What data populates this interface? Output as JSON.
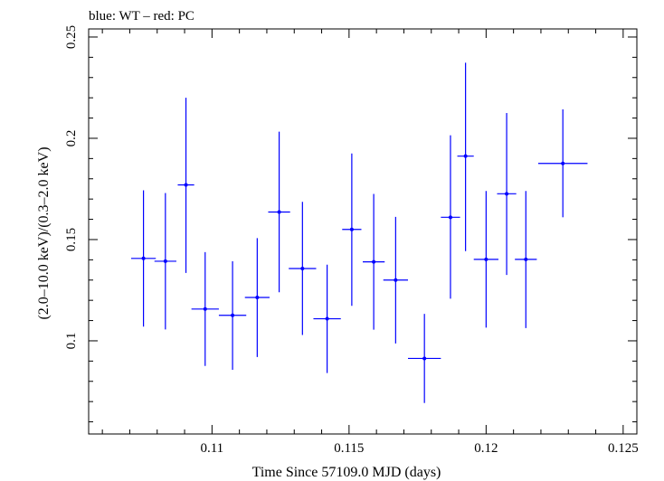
{
  "chart_data": {
    "type": "scatter",
    "title": "blue: WT – red: PC",
    "xlabel": "Time Since 57109.0 MJD (days)",
    "ylabel": "(2.0–10.0 keV)/(0.3–2.0 keV)",
    "xlim": [
      0.1055,
      0.1255
    ],
    "ylim": [
      0.054,
      0.254
    ],
    "x_ticks": [
      0.11,
      0.115,
      0.12,
      0.125
    ],
    "x_tick_labels": [
      "0.11",
      "0.115",
      "0.12",
      "0.125"
    ],
    "y_ticks": [
      0.1,
      0.15,
      0.2,
      0.25
    ],
    "y_tick_labels": [
      "0.1",
      "0.15",
      "0.2",
      "0.25"
    ],
    "grid": false,
    "series": [
      {
        "color": "#0000ff",
        "points": [
          {
            "x": 0.1075,
            "y": 0.1407,
            "xerr_lo": 0.00045,
            "xerr_hi": 0.00045,
            "y_lo": 0.107,
            "y_hi": 0.1743
          },
          {
            "x": 0.1083,
            "y": 0.1393,
            "xerr_lo": 0.0004,
            "xerr_hi": 0.0004,
            "y_lo": 0.1056,
            "y_hi": 0.173
          },
          {
            "x": 0.10905,
            "y": 0.177,
            "xerr_lo": 0.0003,
            "xerr_hi": 0.0003,
            "y_lo": 0.1335,
            "y_hi": 0.22
          },
          {
            "x": 0.10975,
            "y": 0.1157,
            "xerr_lo": 0.0005,
            "xerr_hi": 0.0005,
            "y_lo": 0.0876,
            "y_hi": 0.1438
          },
          {
            "x": 0.11075,
            "y": 0.1126,
            "xerr_lo": 0.0005,
            "xerr_hi": 0.0005,
            "y_lo": 0.0857,
            "y_hi": 0.1393
          },
          {
            "x": 0.11165,
            "y": 0.1214,
            "xerr_lo": 0.00045,
            "xerr_hi": 0.00045,
            "y_lo": 0.092,
            "y_hi": 0.1507
          },
          {
            "x": 0.11245,
            "y": 0.1636,
            "xerr_lo": 0.0004,
            "xerr_hi": 0.0004,
            "y_lo": 0.124,
            "y_hi": 0.2033
          },
          {
            "x": 0.1133,
            "y": 0.1357,
            "xerr_lo": 0.0005,
            "xerr_hi": 0.0005,
            "y_lo": 0.1029,
            "y_hi": 0.1686
          },
          {
            "x": 0.1142,
            "y": 0.1109,
            "xerr_lo": 0.0005,
            "xerr_hi": 0.0005,
            "y_lo": 0.0841,
            "y_hi": 0.1376
          },
          {
            "x": 0.1151,
            "y": 0.155,
            "xerr_lo": 0.00035,
            "xerr_hi": 0.00035,
            "y_lo": 0.1173,
            "y_hi": 0.1925
          },
          {
            "x": 0.1159,
            "y": 0.139,
            "xerr_lo": 0.0004,
            "xerr_hi": 0.0004,
            "y_lo": 0.1055,
            "y_hi": 0.1725
          },
          {
            "x": 0.1167,
            "y": 0.13,
            "xerr_lo": 0.00045,
            "xerr_hi": 0.00045,
            "y_lo": 0.0987,
            "y_hi": 0.1612
          },
          {
            "x": 0.11775,
            "y": 0.0913,
            "xerr_lo": 0.0006,
            "xerr_hi": 0.0006,
            "y_lo": 0.0693,
            "y_hi": 0.1133
          },
          {
            "x": 0.1187,
            "y": 0.161,
            "xerr_lo": 0.00035,
            "xerr_hi": 0.00035,
            "y_lo": 0.1208,
            "y_hi": 0.2015
          },
          {
            "x": 0.11925,
            "y": 0.1912,
            "xerr_lo": 0.0003,
            "xerr_hi": 0.0003,
            "y_lo": 0.1443,
            "y_hi": 0.2373
          },
          {
            "x": 0.12,
            "y": 0.1402,
            "xerr_lo": 0.00045,
            "xerr_hi": 0.00045,
            "y_lo": 0.1065,
            "y_hi": 0.174
          },
          {
            "x": 0.12075,
            "y": 0.1726,
            "xerr_lo": 0.00035,
            "xerr_hi": 0.00035,
            "y_lo": 0.1325,
            "y_hi": 0.2125
          },
          {
            "x": 0.12145,
            "y": 0.1402,
            "xerr_lo": 0.0004,
            "xerr_hi": 0.0004,
            "y_lo": 0.1063,
            "y_hi": 0.174
          },
          {
            "x": 0.1228,
            "y": 0.1876,
            "xerr_lo": 0.0009,
            "xerr_hi": 0.0009,
            "y_lo": 0.161,
            "y_hi": 0.2143
          }
        ]
      }
    ]
  }
}
